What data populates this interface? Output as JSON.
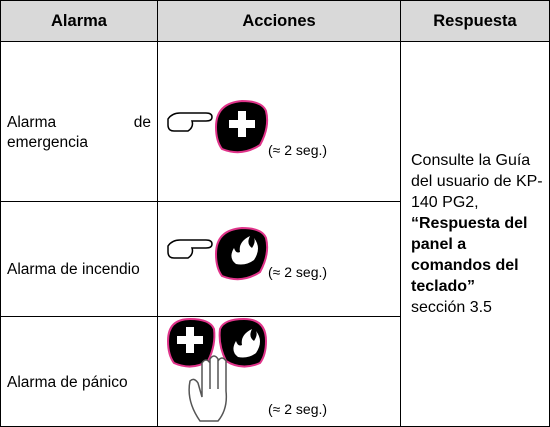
{
  "table": {
    "header": [
      "Alarma",
      "Acciones",
      "Respuesta"
    ],
    "rows": [
      {
        "alarm": "Alarma de emergencia",
        "note": "(≈ 2 seg.)"
      },
      {
        "alarm": "Alarma de incendio",
        "note": "(≈ 2 seg.)"
      },
      {
        "alarm": "Alarma de pánico",
        "note": "(≈ 2 seg.)"
      }
    ],
    "response": {
      "intro": "Consulte la Guía del usuario de KP-140 PG2,",
      "reference": "“Respuesta del panel a comandos del teclado”",
      "section": "sección 3.5"
    }
  }
}
